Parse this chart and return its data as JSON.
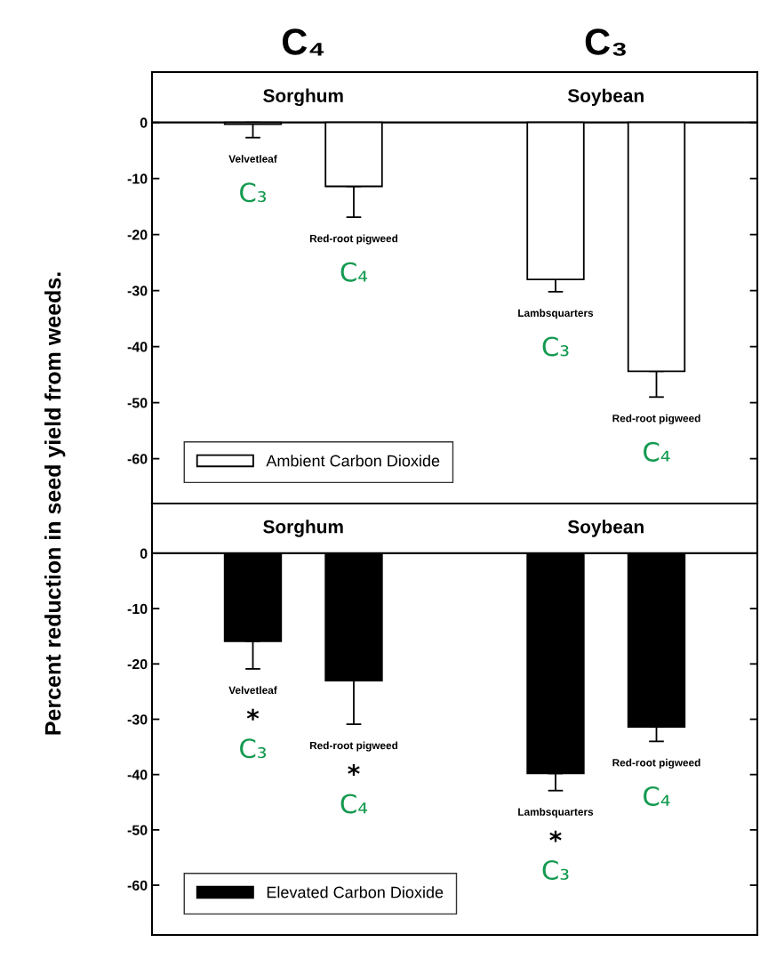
{
  "chart_data": [
    {
      "type": "bar",
      "ylabel": "Percent reduction in seed yield from weeds.",
      "categories": [
        "Velvetleaf",
        "Red-root pigweed",
        null,
        "Lambsquarters",
        "Red-root pigweed"
      ],
      "series": [
        {
          "name": "Ambient Carbon Dioxide",
          "color": "#ffffff",
          "values": [
            -0.3,
            -11.4,
            null,
            -28.0,
            -44.4
          ],
          "errors": [
            [
              -2.7,
              0
            ],
            [
              -16.9,
              -11.4
            ],
            null,
            [
              -30.2,
              -28.0
            ],
            [
              -49.0,
              -44.4
            ]
          ]
        }
      ],
      "ylim": [
        -68,
        9
      ],
      "yticks": [
        0,
        -10,
        -20,
        -30,
        -40,
        -50,
        -60
      ],
      "grid": false,
      "legend": "bottom left",
      "ref_lines": [
        {
          "axis": "y",
          "value": 0
        }
      ],
      "annotations": [
        "C₄",
        "C₃",
        "Sorghum",
        "Soybean",
        "C₃",
        "C₄",
        "C₃",
        "C₄"
      ]
    },
    {
      "type": "bar",
      "categories": [
        "Velvetleaf",
        "Red-root pigweed",
        null,
        "Lambsquarters",
        "Red-root pigweed"
      ],
      "series": [
        {
          "name": "Elevated Carbon Dioxide",
          "color": "#000000",
          "values": [
            -15.9,
            -23.0,
            null,
            -39.8,
            -31.4
          ],
          "errors": [
            [
              -20.9,
              -15.9
            ],
            [
              -30.9,
              -23.0
            ],
            null,
            [
              -42.9,
              -39.8
            ],
            [
              -34.0,
              -31.4
            ]
          ]
        }
      ],
      "ylim": [
        -69,
        9
      ],
      "yticks": [
        0,
        -10,
        -20,
        -30,
        -40,
        -50,
        -60
      ],
      "grid": false,
      "legend": "bottom left",
      "ref_lines": [
        {
          "axis": "y",
          "value": 0
        }
      ],
      "annotations": [
        "Sorghum",
        "Soybean",
        "*",
        "C₃",
        "*",
        "C₄",
        "*",
        "C₃",
        "C₄"
      ]
    }
  ]
}
